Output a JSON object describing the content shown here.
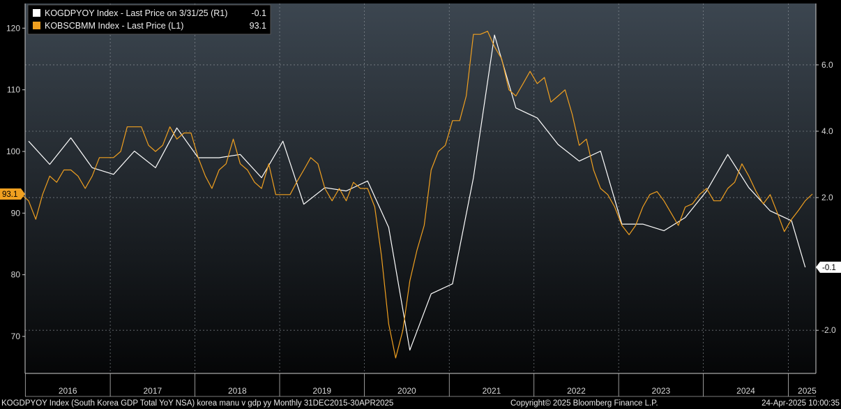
{
  "chart_data": {
    "type": "line",
    "legend": {
      "placement": "top-left",
      "entries": [
        {
          "label": "KOGDPYOY Index - Last Price on 3/31/25 (R1)",
          "value": "-0.1",
          "color": "#ffffff"
        },
        {
          "label": "KOBSCBMM Index - Last Price (L1)",
          "value": "93.1",
          "color": "#f0a020"
        }
      ]
    },
    "x_axis": {
      "labels": [
        "2016",
        "2017",
        "2018",
        "2019",
        "2020",
        "2021",
        "2022",
        "2023",
        "2024",
        "2025"
      ],
      "range": [
        "2015-12-31",
        "2025-04-30"
      ]
    },
    "y_left": {
      "ticks": [
        70,
        80,
        90,
        100,
        110,
        120
      ],
      "range": [
        64,
        124
      ],
      "tag": "93.1"
    },
    "y_right": {
      "ticks": [
        -2.0,
        2.0,
        4.0,
        6.0
      ],
      "tick_labels": [
        "-2.0",
        "2.0",
        "4.0",
        "6.0"
      ],
      "range": [
        -3.3,
        7.85
      ],
      "tag": "-0.1"
    },
    "grid": true,
    "series": [
      {
        "name": "KOGDPYOY Index",
        "axis": "right",
        "color": "#ffffff",
        "points": [
          [
            "2016-01",
            3.7
          ],
          [
            "2016-04",
            3.0
          ],
          [
            "2016-07",
            3.8
          ],
          [
            "2016-10",
            2.9
          ],
          [
            "2017-01",
            2.7
          ],
          [
            "2017-04",
            3.4
          ],
          [
            "2017-07",
            2.9
          ],
          [
            "2017-10",
            4.1
          ],
          [
            "2018-01",
            3.2
          ],
          [
            "2018-04",
            3.2
          ],
          [
            "2018-07",
            3.3
          ],
          [
            "2018-10",
            2.6
          ],
          [
            "2019-01",
            3.7
          ],
          [
            "2019-04",
            1.8
          ],
          [
            "2019-07",
            2.3
          ],
          [
            "2019-10",
            2.2
          ],
          [
            "2020-01",
            2.5
          ],
          [
            "2020-04",
            1.1
          ],
          [
            "2020-07",
            -2.6
          ],
          [
            "2020-10",
            -0.9
          ],
          [
            "2021-01",
            -0.6
          ],
          [
            "2021-04",
            2.6
          ],
          [
            "2021-07",
            6.9
          ],
          [
            "2021-10",
            4.7
          ],
          [
            "2022-01",
            4.4
          ],
          [
            "2022-04",
            3.6
          ],
          [
            "2022-07",
            3.1
          ],
          [
            "2022-10",
            3.4
          ],
          [
            "2023-01",
            1.2
          ],
          [
            "2023-04",
            1.2
          ],
          [
            "2023-07",
            1.0
          ],
          [
            "2023-10",
            1.4
          ],
          [
            "2024-01",
            2.2
          ],
          [
            "2024-04",
            3.3
          ],
          [
            "2024-07",
            2.3
          ],
          [
            "2024-10",
            1.6
          ],
          [
            "2025-01",
            1.3
          ],
          [
            "2025-03",
            -0.1
          ]
        ]
      },
      {
        "name": "KOBSCBMM Index",
        "axis": "left",
        "color": "#f0a020",
        "points": [
          [
            "2015-12",
            93
          ],
          [
            "2016-01",
            92
          ],
          [
            "2016-02",
            89
          ],
          [
            "2016-03",
            93
          ],
          [
            "2016-04",
            96
          ],
          [
            "2016-05",
            95
          ],
          [
            "2016-06",
            97
          ],
          [
            "2016-07",
            97
          ],
          [
            "2016-08",
            96
          ],
          [
            "2016-09",
            94
          ],
          [
            "2016-10",
            96
          ],
          [
            "2016-11",
            99
          ],
          [
            "2016-12",
            99
          ],
          [
            "2017-01",
            99
          ],
          [
            "2017-02",
            100
          ],
          [
            "2017-03",
            104
          ],
          [
            "2017-04",
            104
          ],
          [
            "2017-05",
            104
          ],
          [
            "2017-06",
            101
          ],
          [
            "2017-07",
            100
          ],
          [
            "2017-08",
            101
          ],
          [
            "2017-09",
            104
          ],
          [
            "2017-10",
            102
          ],
          [
            "2017-11",
            103
          ],
          [
            "2017-12",
            103
          ],
          [
            "2018-01",
            99
          ],
          [
            "2018-02",
            96
          ],
          [
            "2018-03",
            94
          ],
          [
            "2018-04",
            97
          ],
          [
            "2018-05",
            98
          ],
          [
            "2018-06",
            102
          ],
          [
            "2018-07",
            98
          ],
          [
            "2018-08",
            97
          ],
          [
            "2018-09",
            95
          ],
          [
            "2018-10",
            94
          ],
          [
            "2018-11",
            98
          ],
          [
            "2018-12",
            93
          ],
          [
            "2019-01",
            93
          ],
          [
            "2019-02",
            93
          ],
          [
            "2019-03",
            95
          ],
          [
            "2019-04",
            97
          ],
          [
            "2019-05",
            99
          ],
          [
            "2019-06",
            98
          ],
          [
            "2019-07",
            94
          ],
          [
            "2019-08",
            92
          ],
          [
            "2019-09",
            94
          ],
          [
            "2019-10",
            92
          ],
          [
            "2019-11",
            95
          ],
          [
            "2019-12",
            94
          ],
          [
            "2020-01",
            94
          ],
          [
            "2020-02",
            91
          ],
          [
            "2020-03",
            83
          ],
          [
            "2020-04",
            72
          ],
          [
            "2020-05",
            66.5
          ],
          [
            "2020-06",
            71
          ],
          [
            "2020-07",
            79
          ],
          [
            "2020-08",
            84
          ],
          [
            "2020-09",
            88
          ],
          [
            "2020-10",
            97
          ],
          [
            "2020-11",
            100
          ],
          [
            "2020-12",
            101
          ],
          [
            "2021-01",
            105
          ],
          [
            "2021-02",
            105
          ],
          [
            "2021-03",
            109
          ],
          [
            "2021-04",
            119
          ],
          [
            "2021-05",
            119
          ],
          [
            "2021-06",
            119.5
          ],
          [
            "2021-07",
            117
          ],
          [
            "2021-08",
            115
          ],
          [
            "2021-09",
            110
          ],
          [
            "2021-10",
            109
          ],
          [
            "2021-11",
            111
          ],
          [
            "2021-12",
            113
          ],
          [
            "2022-01",
            111
          ],
          [
            "2022-02",
            112
          ],
          [
            "2022-03",
            108
          ],
          [
            "2022-04",
            109
          ],
          [
            "2022-05",
            110
          ],
          [
            "2022-06",
            106
          ],
          [
            "2022-07",
            101
          ],
          [
            "2022-08",
            102
          ],
          [
            "2022-09",
            97
          ],
          [
            "2022-10",
            94
          ],
          [
            "2022-11",
            93
          ],
          [
            "2022-12",
            91
          ],
          [
            "2023-01",
            88
          ],
          [
            "2023-02",
            86.5
          ],
          [
            "2023-03",
            88
          ],
          [
            "2023-04",
            91
          ],
          [
            "2023-05",
            93
          ],
          [
            "2023-06",
            93.5
          ],
          [
            "2023-07",
            92
          ],
          [
            "2023-08",
            90
          ],
          [
            "2023-09",
            88
          ],
          [
            "2023-10",
            91
          ],
          [
            "2023-11",
            91.5
          ],
          [
            "2023-12",
            93
          ],
          [
            "2024-01",
            94
          ],
          [
            "2024-02",
            92
          ],
          [
            "2024-03",
            92
          ],
          [
            "2024-04",
            94
          ],
          [
            "2024-05",
            95
          ],
          [
            "2024-06",
            98
          ],
          [
            "2024-07",
            96
          ],
          [
            "2024-08",
            93.5
          ],
          [
            "2024-09",
            91.5
          ],
          [
            "2024-10",
            93
          ],
          [
            "2024-11",
            90
          ],
          [
            "2024-12",
            87
          ],
          [
            "2025-01",
            89
          ],
          [
            "2025-02",
            90.5
          ],
          [
            "2025-03",
            92
          ],
          [
            "2025-04",
            93.1
          ]
        ]
      }
    ]
  },
  "footer": {
    "left": "KOGDPYOY Index (South Korea GDP Total YoY NSA) korea manu v gdp yy  Monthly 31DEC2015-30APR2025",
    "center": "Copyright© 2025 Bloomberg Finance L.P.",
    "right": "24-Apr-2025 10:00:35"
  }
}
